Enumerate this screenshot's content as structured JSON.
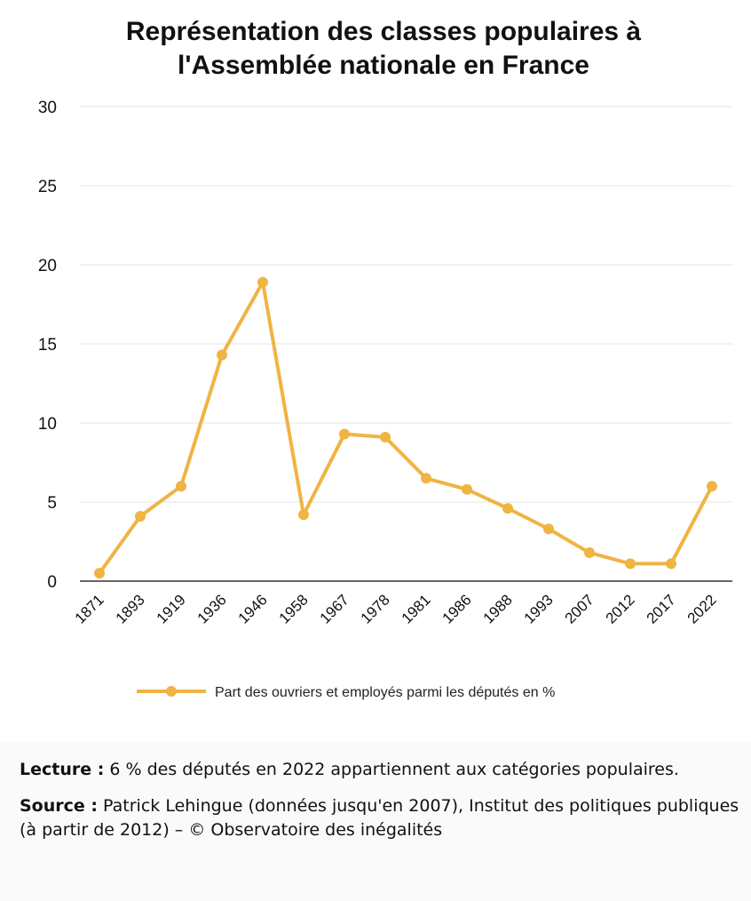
{
  "chart_data": {
    "type": "line",
    "title_line1": "Représentation des classes populaires à",
    "title_line2": "l'Assemblée nationale en France",
    "categories": [
      "1871",
      "1893",
      "1919",
      "1936",
      "1946",
      "1958",
      "1967",
      "1978",
      "1981",
      "1986",
      "1988",
      "1993",
      "2007",
      "2012",
      "2017",
      "2022"
    ],
    "series": [
      {
        "name": "Part des ouvriers et employés parmi les députés en %",
        "values": [
          0.5,
          4.1,
          6.0,
          14.3,
          18.9,
          4.2,
          9.3,
          9.1,
          6.5,
          5.8,
          4.6,
          3.3,
          1.8,
          1.1,
          1.1,
          6.0
        ]
      }
    ],
    "yticks": [
      "0",
      "5",
      "10",
      "15",
      "20",
      "25",
      "30"
    ],
    "ylim": [
      0,
      30
    ],
    "grid": true,
    "legend": "bottom",
    "line_color": "#f0b443"
  },
  "footer": {
    "lecture_label": "Lecture :",
    "lecture_text": " 6 % des députés en 2022 appartiennent aux catégories populaires.",
    "source_label": "Source :",
    "source_text": " Patrick Lehingue (données jusqu'en 2007), Institut des politiques publiques (à partir de 2012) – © Observatoire des inégalités"
  }
}
